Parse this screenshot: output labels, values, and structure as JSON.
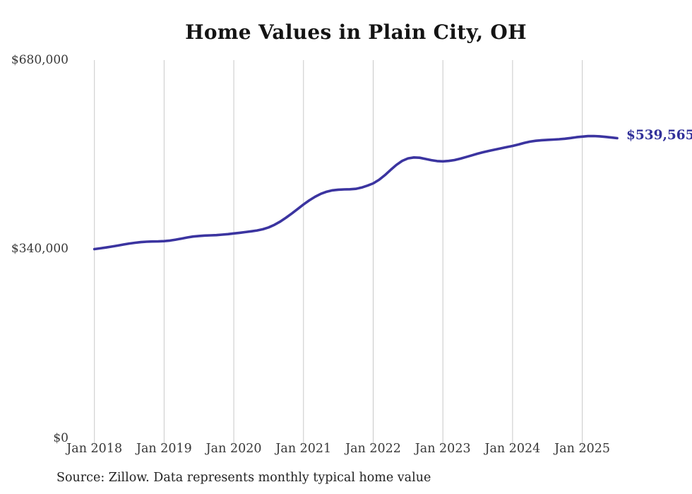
{
  "chart_data": {
    "type": "line",
    "title": "Home Values in Plain City, OH",
    "xlabel": "",
    "ylabel": "",
    "ylim": [
      0,
      680000
    ],
    "grid": "vertical-year-lines",
    "x_tick_labels": [
      "Jan 2018",
      "Jan 2019",
      "Jan 2020",
      "Jan 2021",
      "Jan 2022",
      "Jan 2023",
      "Jan 2024",
      "Jan 2025"
    ],
    "y_tick_labels": [
      "$680,000",
      "$340,000",
      "$0"
    ],
    "y_tick_values": [
      680000,
      340000,
      0
    ],
    "end_label": "$539,565",
    "latest_value": 539565,
    "line_color": "#3b34a0",
    "series": [
      {
        "name": "Monthly typical home value",
        "x_start_month": "2018-01",
        "x_interval": "monthly",
        "x_end_month": "2025-07",
        "values": [
          340000,
          341400,
          342900,
          344600,
          346400,
          348200,
          350000,
          351500,
          352600,
          353300,
          353700,
          353900,
          354300,
          355400,
          357000,
          359000,
          361000,
          362600,
          363700,
          364400,
          364800,
          365200,
          366000,
          367000,
          368200,
          369400,
          370600,
          372000,
          373500,
          375700,
          379000,
          383700,
          389600,
          396500,
          404000,
          412200,
          420300,
          427700,
          434200,
          439500,
          443300,
          445700,
          446900,
          447400,
          447600,
          448400,
          450700,
          454100,
          458200,
          464500,
          473000,
          482500,
          491500,
          498800,
          503200,
          504800,
          504300,
          502200,
          500000,
          498400,
          497900,
          498600,
          500200,
          502700,
          505600,
          508700,
          511700,
          514400,
          516800,
          519100,
          521300,
          523500,
          525600,
          528100,
          530900,
          533300,
          534900,
          535900,
          536500,
          537000,
          537600,
          538500,
          539800,
          541300,
          542400,
          543200,
          543400,
          542900,
          541900,
          540700,
          539565
        ]
      }
    ],
    "source": "Source: Zillow. Data represents monthly typical home value"
  }
}
